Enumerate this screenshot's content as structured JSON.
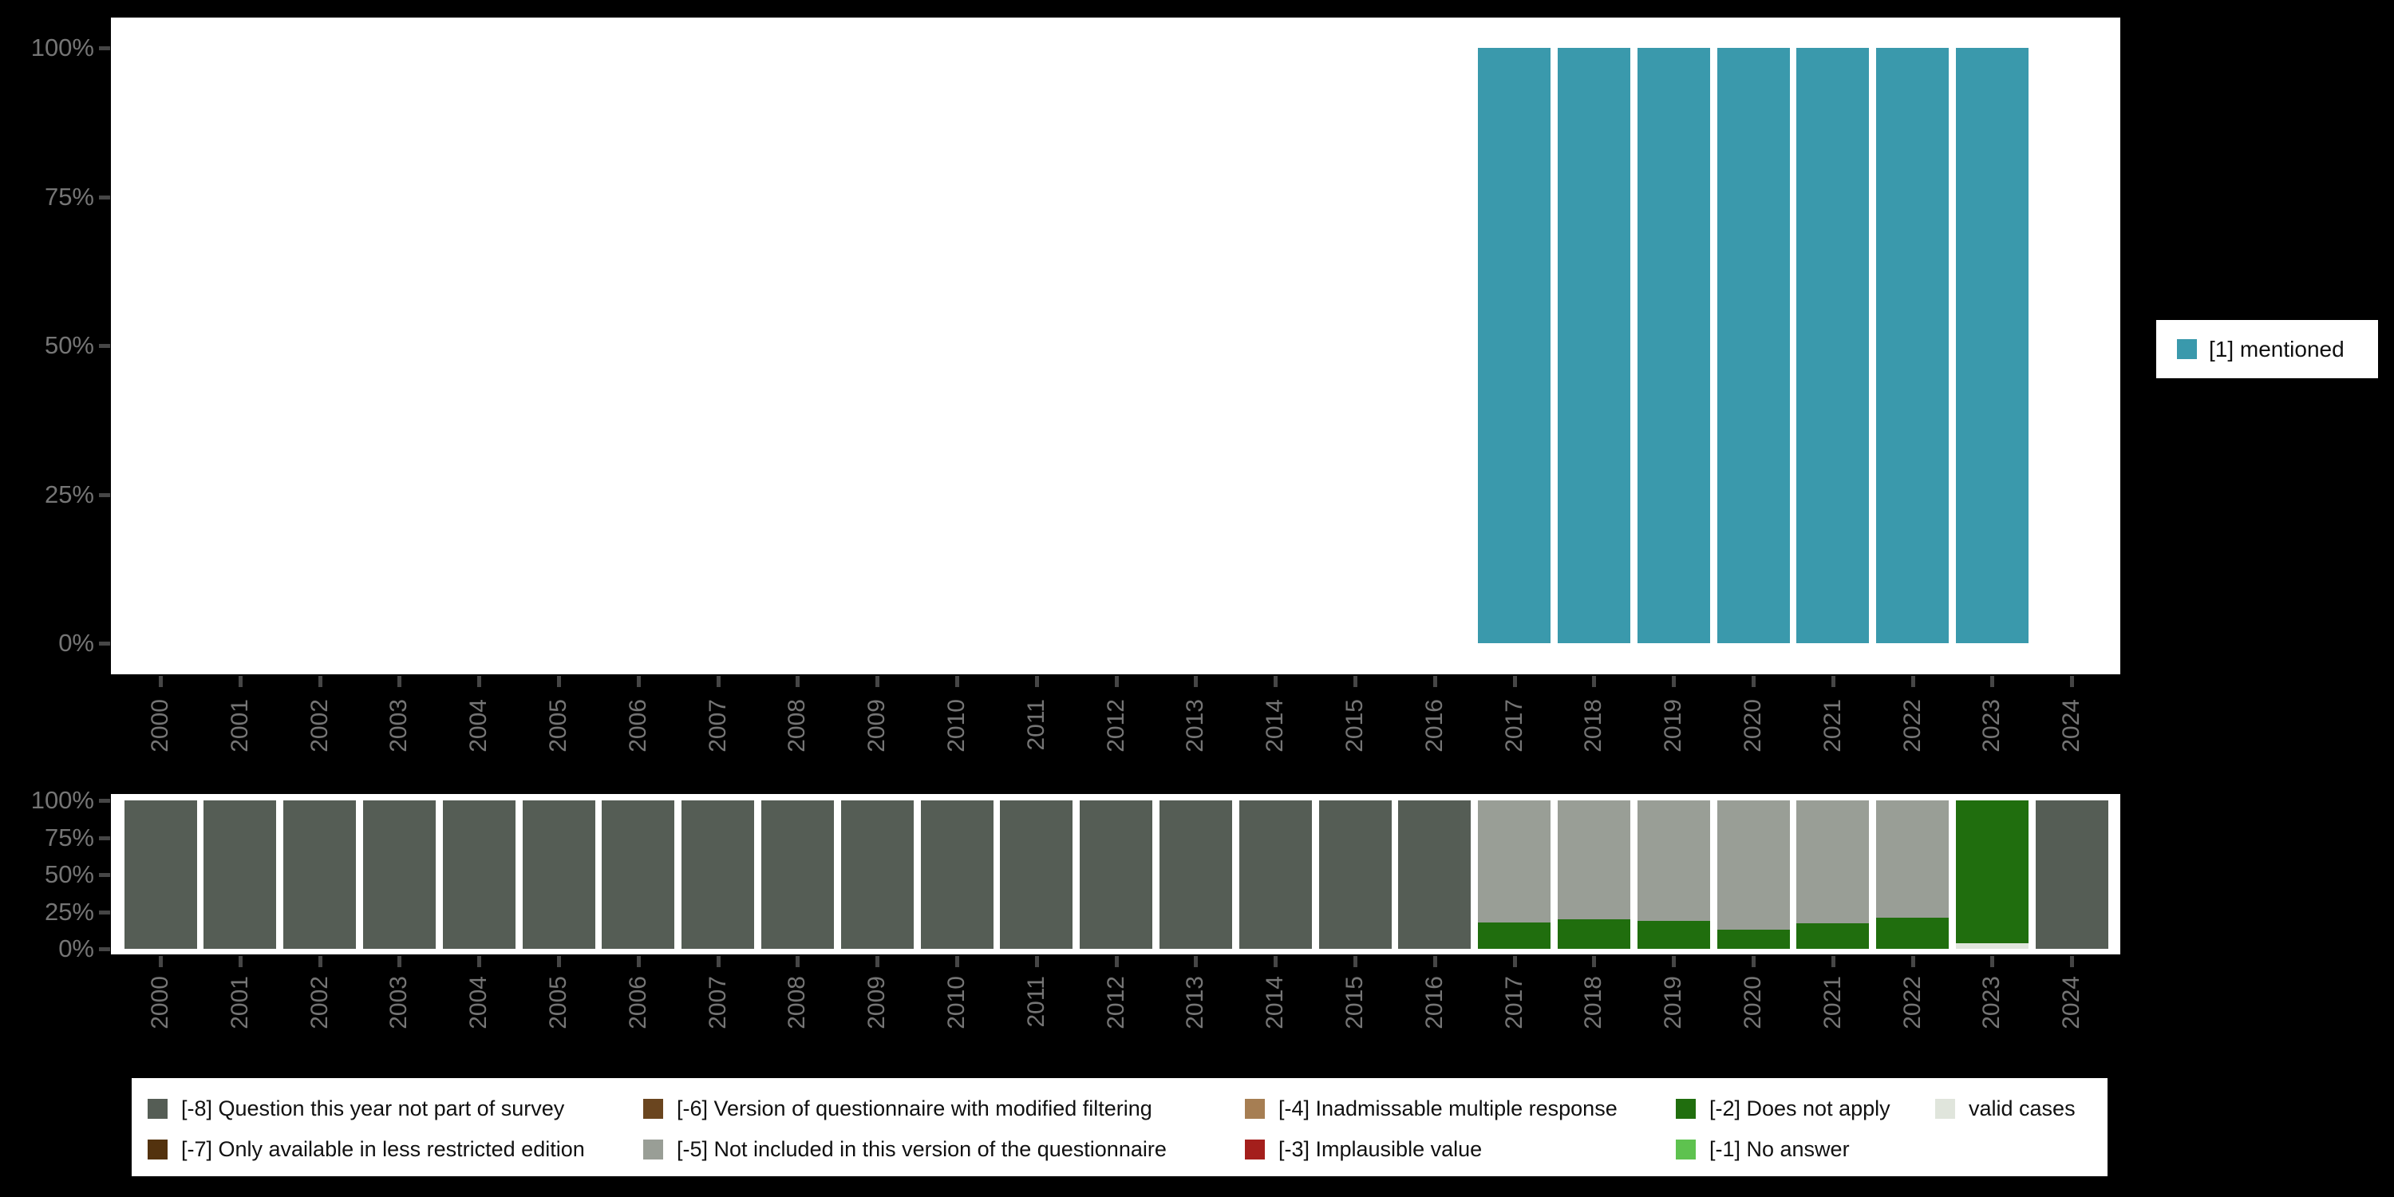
{
  "right_legend": {
    "label": "[1] mentioned"
  },
  "colors": {
    "mentioned": "#3a99ac",
    "-8": "#555d55",
    "-7": "#53320e",
    "-6": "#6a451f",
    "-5": "#999e96",
    "-4": "#a67e53",
    "-3": "#a41f1c",
    "-2": "#206e0e",
    "-1": "#5ec24f",
    "valid": "#e0e5dc"
  },
  "legend": {
    "items": [
      {
        "key": "-8",
        "label": "[-8] Question this year not part of survey",
        "row": 0,
        "col": 0
      },
      {
        "key": "-7",
        "label": "[-7] Only available in less restricted edition",
        "row": 1,
        "col": 0
      },
      {
        "key": "-6",
        "label": "[-6] Version of questionnaire with modified filtering",
        "row": 0,
        "col": 1
      },
      {
        "key": "-5",
        "label": "[-5] Not included in this version of the questionnaire",
        "row": 1,
        "col": 1
      },
      {
        "key": "-4",
        "label": "[-4] Inadmissable multiple response",
        "row": 0,
        "col": 2
      },
      {
        "key": "-3",
        "label": "[-3] Implausible value",
        "row": 1,
        "col": 2
      },
      {
        "key": "-2",
        "label": "[-2] Does not apply",
        "row": 0,
        "col": 3
      },
      {
        "key": "-1",
        "label": "[-1] No answer",
        "row": 1,
        "col": 3
      },
      {
        "key": "valid",
        "label": "valid cases",
        "row": 0,
        "col": 4
      }
    ]
  },
  "chart_data": [
    {
      "type": "bar",
      "panel": "top",
      "title": "",
      "categories": [
        "2000",
        "2001",
        "2002",
        "2003",
        "2004",
        "2005",
        "2006",
        "2007",
        "2008",
        "2009",
        "2010",
        "2011",
        "2012",
        "2013",
        "2014",
        "2015",
        "2016",
        "2017",
        "2018",
        "2019",
        "2020",
        "2021",
        "2022",
        "2023",
        "2024"
      ],
      "yticks": [
        0,
        25,
        50,
        75,
        100
      ],
      "ytick_labels": [
        "0%",
        "25%",
        "50%",
        "75%",
        "100%"
      ],
      "ylim": [
        0,
        100
      ],
      "grid": false,
      "legend_position": "right",
      "series": [
        {
          "name": "[1] mentioned",
          "key": "mentioned",
          "values": [
            0,
            0,
            0,
            0,
            0,
            0,
            0,
            0,
            0,
            0,
            0,
            0,
            0,
            0,
            0,
            0,
            0,
            100,
            100,
            100,
            100,
            100,
            100,
            100,
            0
          ]
        }
      ]
    },
    {
      "type": "stacked-bar",
      "panel": "bottom",
      "title": "",
      "categories": [
        "2000",
        "2001",
        "2002",
        "2003",
        "2004",
        "2005",
        "2006",
        "2007",
        "2008",
        "2009",
        "2010",
        "2011",
        "2012",
        "2013",
        "2014",
        "2015",
        "2016",
        "2017",
        "2018",
        "2019",
        "2020",
        "2021",
        "2022",
        "2023",
        "2024"
      ],
      "yticks": [
        0,
        25,
        50,
        75,
        100
      ],
      "ytick_labels": [
        "0%",
        "25%",
        "50%",
        "75%",
        "100%"
      ],
      "ylim": [
        0,
        100
      ],
      "grid": false,
      "stack_order_bottom_to_top": [
        "valid",
        "-1",
        "-2",
        "-3",
        "-4",
        "-5",
        "-6",
        "-7",
        "-8"
      ],
      "series": [
        {
          "name": "valid cases",
          "key": "valid",
          "values": [
            0,
            0,
            0,
            0,
            0,
            0,
            0,
            0,
            0,
            0,
            0,
            0,
            0,
            0,
            0,
            0,
            0,
            0,
            0,
            0,
            0,
            0,
            0,
            4,
            0
          ]
        },
        {
          "name": "[-2] Does not apply",
          "key": "-2",
          "values": [
            0,
            0,
            0,
            0,
            0,
            0,
            0,
            0,
            0,
            0,
            0,
            0,
            0,
            0,
            0,
            0,
            0,
            18,
            20,
            19,
            13,
            17,
            21,
            96,
            0
          ]
        },
        {
          "name": "[-5] Not included in this version of the questionnaire",
          "key": "-5",
          "values": [
            0,
            0,
            0,
            0,
            0,
            0,
            0,
            0,
            0,
            0,
            0,
            0,
            0,
            0,
            0,
            0,
            0,
            82,
            80,
            81,
            87,
            83,
            79,
            0,
            0
          ]
        },
        {
          "name": "[-8] Question this year not part of survey",
          "key": "-8",
          "values": [
            100,
            100,
            100,
            100,
            100,
            100,
            100,
            100,
            100,
            100,
            100,
            100,
            100,
            100,
            100,
            100,
            100,
            0,
            0,
            0,
            0,
            0,
            0,
            0,
            100
          ]
        }
      ]
    }
  ]
}
